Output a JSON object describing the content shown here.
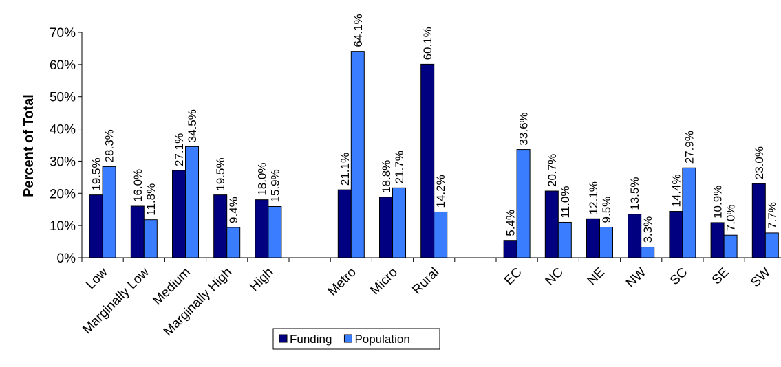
{
  "chart_data": {
    "type": "bar",
    "title": "",
    "xlabel": "",
    "ylabel": "Percent of Total",
    "ylim": [
      0,
      70
    ],
    "yticks": [
      "0%",
      "10%",
      "20%",
      "30%",
      "40%",
      "50%",
      "60%",
      "70%"
    ],
    "grid": false,
    "legend_position": "bottom",
    "categories": [
      "Low",
      "Marginally Low",
      "Medium",
      "Marginally High",
      "High",
      "",
      "Metro",
      "Micro",
      "Rural",
      "",
      "EC",
      "NC",
      "NE",
      "NW",
      "SC",
      "SE",
      "SW"
    ],
    "series": [
      {
        "name": "Funding",
        "color": "#000080",
        "values": [
          19.5,
          16.0,
          27.1,
          19.5,
          18.0,
          null,
          21.1,
          18.8,
          60.1,
          null,
          5.4,
          20.7,
          12.1,
          13.5,
          14.4,
          10.9,
          23.0
        ],
        "labels": [
          "19.5%",
          "16.0%",
          "27.1%",
          "19.5%",
          "18.0%",
          "",
          "21.1%",
          "18.8%",
          "60.1%",
          "",
          "5.4%",
          "20.7%",
          "12.1%",
          "13.5%",
          "14.4%",
          "10.9%",
          "23.0%"
        ]
      },
      {
        "name": "Population",
        "color": "#3A7DFF",
        "values": [
          28.3,
          11.8,
          34.5,
          9.4,
          15.9,
          null,
          64.1,
          21.7,
          14.2,
          null,
          33.6,
          11.0,
          9.5,
          3.3,
          27.9,
          7.0,
          7.7
        ],
        "labels": [
          "28.3%",
          "11.8%",
          "34.5%",
          "9.4%",
          "15.9%",
          "",
          "64.1%",
          "21.7%",
          "14.2%",
          "",
          "33.6%",
          "11.0%",
          "9.5%",
          "3.3%",
          "27.9%",
          "7.0%",
          "7.7%"
        ]
      }
    ]
  }
}
